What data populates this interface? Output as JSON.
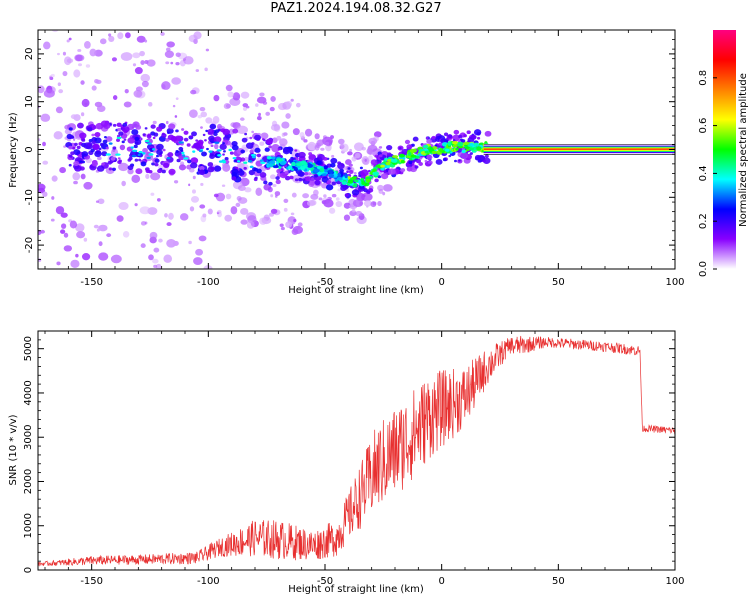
{
  "title": "PAZ1.2024.194.08.32.G27",
  "chart_data": [
    {
      "type": "heatmap",
      "xlabel": "Height of straight line (km)",
      "ylabel": "Frequency (Hz)",
      "xlim": [
        -173,
        100
      ],
      "ylim": [
        -25,
        25
      ],
      "x_ticks": [
        -150,
        -100,
        -50,
        0,
        50,
        100
      ],
      "y_ticks": [
        -20,
        -10,
        0,
        10,
        20
      ],
      "colorbar": {
        "label": "Normalized spectral amplitude",
        "range": [
          0,
          1
        ],
        "ticks": [
          "0.0",
          "0.2",
          "0.4",
          "0.6",
          "0.8"
        ],
        "colors": [
          "#ffffff",
          "#8800ff",
          "#0000ff",
          "#00ffff",
          "#00ff00",
          "#ffff00",
          "#ff8000",
          "#ff0000",
          "#ff0080"
        ]
      },
      "ridge": [
        {
          "x": -145,
          "f": 1
        },
        {
          "x": -120,
          "f": 0
        },
        {
          "x": -100,
          "f": 0
        },
        {
          "x": -80,
          "f": -2
        },
        {
          "x": -68,
          "f": -3
        },
        {
          "x": -60,
          "f": -3.5
        },
        {
          "x": -50,
          "f": -4.5
        },
        {
          "x": -40,
          "f": -6.5
        },
        {
          "x": -33,
          "f": -7
        },
        {
          "x": -25,
          "f": -3
        },
        {
          "x": -15,
          "f": -1.5
        },
        {
          "x": -5,
          "f": 0
        },
        {
          "x": 5,
          "f": 0.5
        },
        {
          "x": 18,
          "f": 0.5
        },
        {
          "x": 100,
          "f": 0
        }
      ]
    },
    {
      "type": "line",
      "xlabel": "Height of straight line (km)",
      "ylabel": "SNR (10 * v/v)",
      "xlim": [
        -173,
        100
      ],
      "ylim": [
        0,
        5400
      ],
      "x_ticks": [
        -150,
        -100,
        -50,
        0,
        50,
        100
      ],
      "y_ticks": [
        0,
        1000,
        2000,
        3000,
        4000,
        5000
      ],
      "color": "#e83030",
      "envelope": [
        {
          "x": -173,
          "base": 120,
          "amp": 60
        },
        {
          "x": -150,
          "base": 180,
          "amp": 150
        },
        {
          "x": -130,
          "base": 200,
          "amp": 160
        },
        {
          "x": -105,
          "base": 230,
          "amp": 200
        },
        {
          "x": -95,
          "base": 450,
          "amp": 300
        },
        {
          "x": -80,
          "base": 600,
          "amp": 600
        },
        {
          "x": -70,
          "base": 550,
          "amp": 650
        },
        {
          "x": -55,
          "base": 450,
          "amp": 500
        },
        {
          "x": -45,
          "base": 600,
          "amp": 600
        },
        {
          "x": -38,
          "base": 1200,
          "amp": 900
        },
        {
          "x": -28,
          "base": 2000,
          "amp": 1400
        },
        {
          "x": -15,
          "base": 2600,
          "amp": 1500
        },
        {
          "x": -5,
          "base": 3200,
          "amp": 1400
        },
        {
          "x": 10,
          "base": 3700,
          "amp": 1000
        },
        {
          "x": 20,
          "base": 4500,
          "amp": 600
        },
        {
          "x": 30,
          "base": 5050,
          "amp": 250
        },
        {
          "x": 45,
          "base": 5150,
          "amp": 120
        },
        {
          "x": 70,
          "base": 5050,
          "amp": 120
        },
        {
          "x": 85,
          "base": 4950,
          "amp": 120
        },
        {
          "x": 86,
          "base": 3200,
          "amp": 80
        },
        {
          "x": 100,
          "base": 3150,
          "amp": 80
        }
      ]
    }
  ]
}
